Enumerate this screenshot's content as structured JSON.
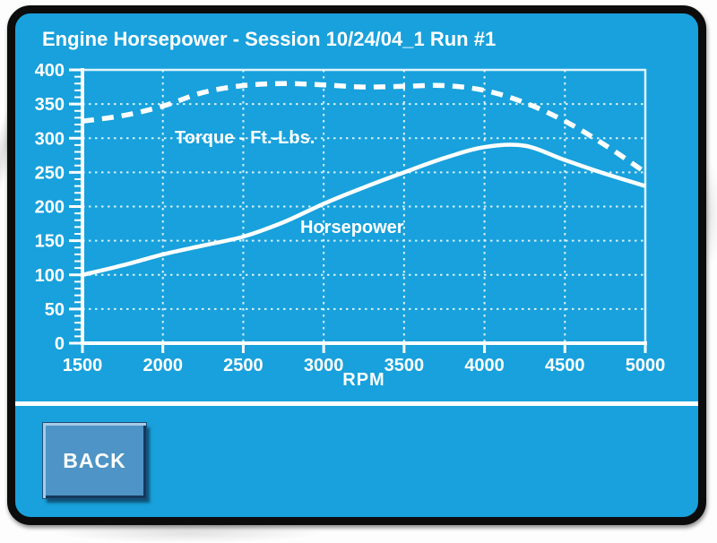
{
  "title": "Engine Horsepower - Session 10/24/04_1 Run #1",
  "back_button": {
    "label": "BACK"
  },
  "colors": {
    "screen_bg": "#18A1DC",
    "bezel": "#0c0c0c",
    "plot_lines": "#FFFFFF",
    "grid_dots": "#EAF8FF",
    "button_bg": "#4E94C6",
    "button_bevel_light": "#A7CBE6",
    "button_bevel_dark": "#13395C",
    "text": "#FFFFFF"
  },
  "chart_data": {
    "type": "line",
    "xlabel": "RPM",
    "xlim": [
      1500,
      5000
    ],
    "ylim": [
      0,
      400
    ],
    "xticks": [
      1500,
      2000,
      2500,
      3000,
      3500,
      4000,
      4500,
      5000
    ],
    "yticks": [
      0,
      50,
      100,
      150,
      200,
      250,
      300,
      350,
      400
    ],
    "y_minor_step": 10,
    "grid": true,
    "legend_position": "inline-labels",
    "x": [
      1500,
      1750,
      2000,
      2250,
      2500,
      2750,
      3000,
      3250,
      3500,
      3750,
      4000,
      4250,
      4500,
      4750,
      5000
    ],
    "series": [
      {
        "id": "torque-curve",
        "name": "Torque - Ft.-Lbs.",
        "line_style": "dashed",
        "values": [
          325,
          333,
          347,
          367,
          377,
          380,
          378,
          375,
          376,
          377,
          370,
          352,
          325,
          290,
          250
        ]
      },
      {
        "id": "horsepower-curve",
        "name": "Horsepower",
        "line_style": "solid",
        "values": [
          100,
          114,
          130,
          143,
          156,
          177,
          204,
          228,
          250,
          271,
          287,
          289,
          268,
          248,
          230
        ]
      }
    ]
  }
}
